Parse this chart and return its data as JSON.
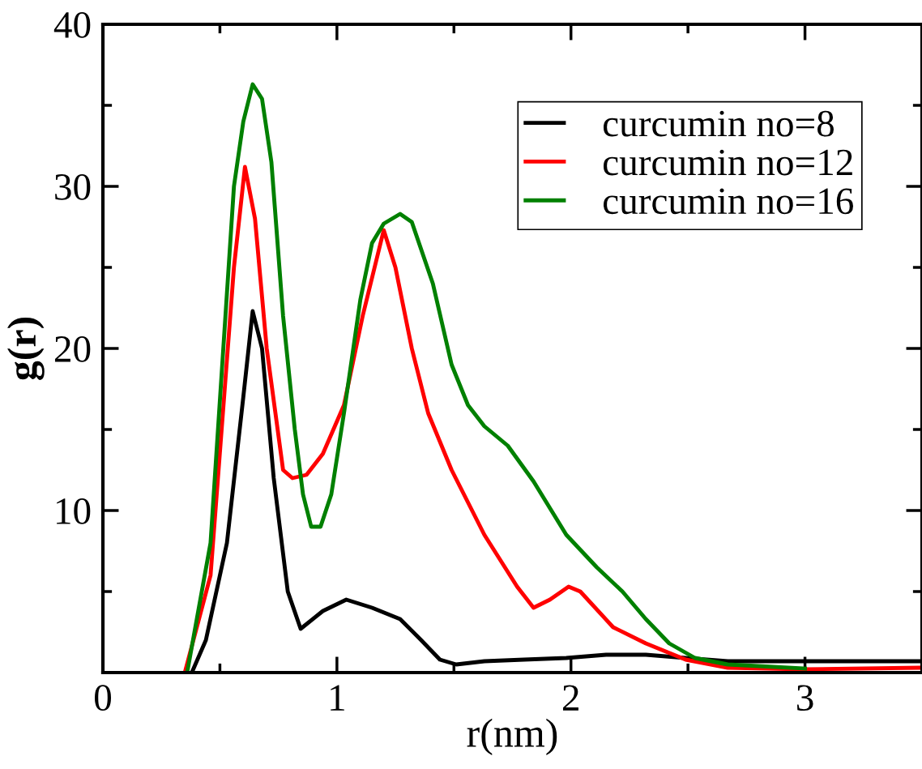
{
  "chart_data": {
    "type": "line",
    "xlabel": "r(nm)",
    "ylabel": "g(r)",
    "xlim": [
      0,
      3.5
    ],
    "ylim": [
      0,
      40
    ],
    "xticks": [
      0,
      {
        "value": 0.5,
        "label": null
      },
      1,
      {
        "value": 1.5,
        "label": null
      },
      2,
      {
        "value": 2.5,
        "label": null
      },
      3
    ],
    "yticks": [
      {
        "value": 5,
        "label": null
      },
      10,
      {
        "value": 15,
        "label": null
      },
      20,
      {
        "value": 25,
        "label": null
      },
      30,
      {
        "value": 35,
        "label": null
      },
      40
    ],
    "legend": "top right",
    "grid": false,
    "series": [
      {
        "name": "curcumin no=8",
        "color": "#000000",
        "x": [
          0.38,
          0.44,
          0.53,
          0.6,
          0.64,
          0.68,
          0.73,
          0.79,
          0.845,
          0.94,
          1.04,
          1.15,
          1.27,
          1.36,
          1.44,
          1.51,
          1.63,
          1.8,
          1.98,
          2.15,
          2.32,
          2.49,
          2.67,
          3.0,
          3.49
        ],
        "values": [
          0,
          2,
          8,
          17,
          22.3,
          20,
          12,
          5,
          2.7,
          3.8,
          4.5,
          4.0,
          3.3,
          2,
          0.8,
          0.5,
          0.7,
          0.8,
          0.9,
          1.1,
          1.1,
          0.9,
          0.7,
          0.7,
          0.7
        ]
      },
      {
        "name": "curcumin no=12",
        "color": "#ff0000",
        "x": [
          0.35,
          0.46,
          0.56,
          0.607,
          0.65,
          0.7,
          0.77,
          0.81,
          0.87,
          0.94,
          1.03,
          1.11,
          1.2,
          1.25,
          1.32,
          1.39,
          1.49,
          1.63,
          1.77,
          1.84,
          1.91,
          1.99,
          2.04,
          2.18,
          2.32,
          2.49,
          2.67,
          3.0,
          3.49
        ],
        "values": [
          0,
          6,
          25,
          31.2,
          28,
          20,
          12.5,
          12,
          12.2,
          13.5,
          16.5,
          22,
          27.3,
          25,
          20,
          16,
          12.5,
          8.5,
          5.3,
          4.0,
          4.5,
          5.3,
          5.0,
          2.8,
          1.8,
          0.8,
          0.3,
          0.2,
          0.3
        ]
      },
      {
        "name": "curcumin no=16",
        "color": "#008000",
        "x": [
          0.36,
          0.46,
          0.56,
          0.6,
          0.64,
          0.68,
          0.72,
          0.77,
          0.82,
          0.855,
          0.89,
          0.93,
          0.976,
          1.03,
          1.1,
          1.15,
          1.2,
          1.27,
          1.32,
          1.41,
          1.49,
          1.56,
          1.63,
          1.73,
          1.84,
          1.98,
          2.11,
          2.22,
          2.32,
          2.42,
          2.53,
          2.67,
          3.0
        ],
        "values": [
          0,
          8,
          30,
          34,
          36.3,
          35.4,
          31.5,
          22,
          15,
          11,
          9,
          9,
          11,
          16,
          23,
          26.5,
          27.7,
          28.3,
          27.8,
          24,
          19,
          16.5,
          15.2,
          14,
          11.8,
          8.5,
          6.5,
          5,
          3.3,
          1.8,
          0.9,
          0.5,
          0.25
        ]
      }
    ]
  }
}
